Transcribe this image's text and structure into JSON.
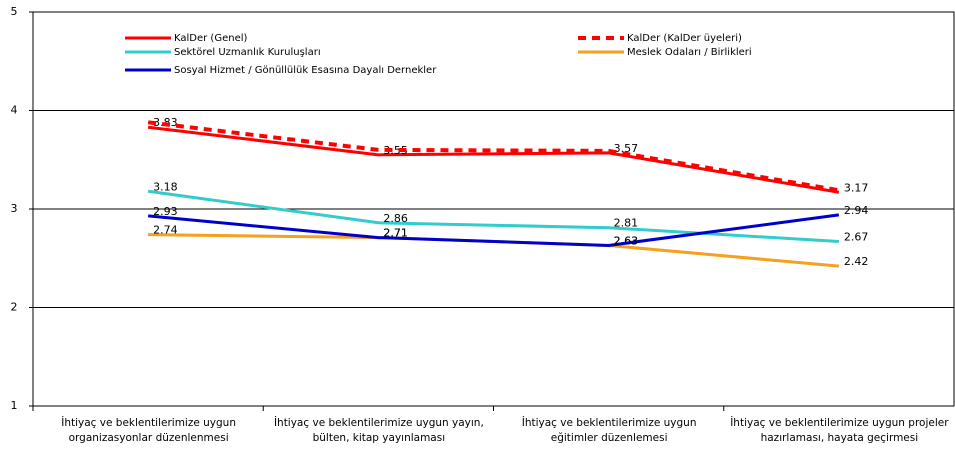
{
  "chart_data": {
    "type": "line",
    "categories": [
      "İhtiyaç ve beklentilerimize uygun organizasyonlar düzenlenmesi",
      "İhtiyaç ve beklentilerimize uygun yayın, bülten, kitap yayınlaması",
      "İhtiyaç ve beklentilerimize uygun eğitimler düzenlemesi",
      "İhtiyaç ve beklentilerimize uygun projeler hazırlaması, hayata geçirmesi"
    ],
    "series": [
      {
        "name": "KalDer (Genel)",
        "color": "#ff0000",
        "style": "solid",
        "values": [
          3.83,
          3.55,
          3.57,
          3.17
        ],
        "labels": true
      },
      {
        "name": "KalDer (KalDer üyeleri)",
        "color": "#ff0000",
        "style": "dashed",
        "values": [
          3.88,
          3.6,
          3.59,
          3.19
        ],
        "labels": false
      },
      {
        "name": "Sektörel Uzmanlık Kuruluşları",
        "color": "#33cccc",
        "style": "solid",
        "values": [
          3.18,
          2.86,
          2.81,
          2.67
        ],
        "labels": true
      },
      {
        "name": "Meslek Odaları / Birlikleri",
        "color": "#f5a01e",
        "style": "solid",
        "values": [
          2.74,
          2.71,
          2.63,
          2.42
        ],
        "labels": true
      },
      {
        "name": "Sosyal Hizmet / Gönüllülük Esasına Dayalı Dernekler",
        "color": "#0000cc",
        "style": "solid",
        "values": [
          2.93,
          2.71,
          2.63,
          2.94
        ],
        "labels": true
      }
    ],
    "ylim": [
      1,
      5
    ],
    "yticks": [
      1,
      2,
      3,
      4,
      5
    ],
    "grid": true
  }
}
